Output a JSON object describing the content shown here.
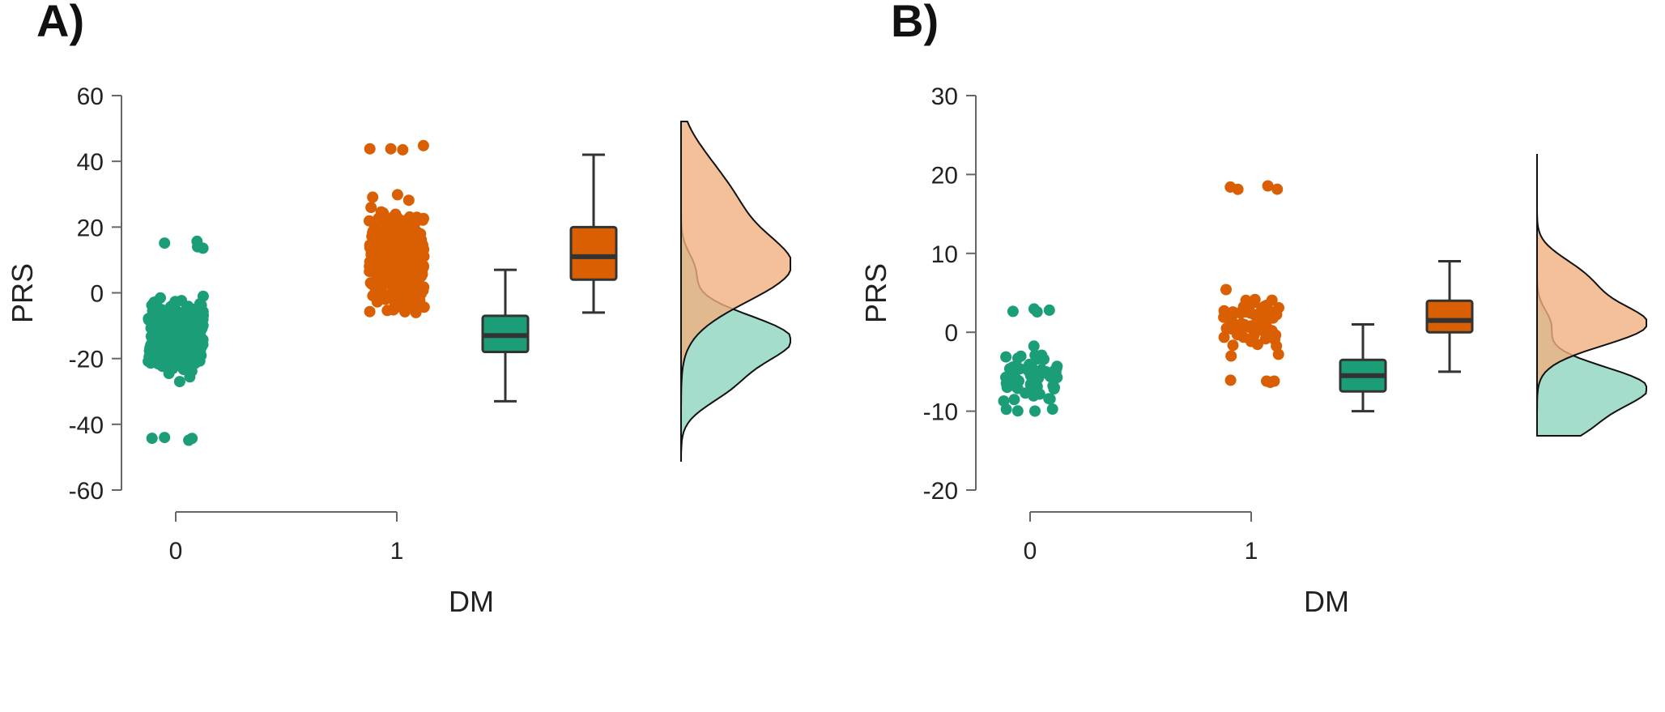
{
  "colors": {
    "group0": "#1b9e77",
    "group1": "#d95f02",
    "group0_density": "#8fd4bf",
    "group1_density": "#f0b07f",
    "box_edge": "#333333"
  },
  "chart_data": [
    {
      "type": "raincloud",
      "panel_label": "A)",
      "xlabel": "DM",
      "ylabel": "PRS",
      "ylim": [
        -60,
        60
      ],
      "yticks": [
        60,
        40,
        20,
        0,
        -20,
        -40,
        -60
      ],
      "ytick_labels": [
        "60",
        "40",
        "20",
        "0",
        "-20",
        "-40",
        "-60"
      ],
      "categories": [
        "0",
        "1"
      ],
      "series": [
        {
          "name": "0",
          "points_range": [
            -46,
            16
          ],
          "n_points": 420,
          "box": {
            "min": -33,
            "q1": -18,
            "median": -13,
            "q3": -7,
            "max": 7
          },
          "density_peak": -14
        },
        {
          "name": "1",
          "points_range": [
            -6,
            45
          ],
          "n_points": 420,
          "box": {
            "min": -6,
            "q1": 4,
            "median": 11,
            "q3": 20,
            "max": 42
          },
          "density_peak": 8
        }
      ]
    },
    {
      "type": "raincloud",
      "panel_label": "B)",
      "xlabel": "DM",
      "ylabel": "PRS",
      "ylim": [
        -20,
        30
      ],
      "yticks": [
        30,
        20,
        10,
        0,
        -10,
        -20
      ],
      "ytick_labels": [
        "30",
        "20",
        "10",
        "0",
        "-10",
        "-20"
      ],
      "categories": [
        "0",
        "1"
      ],
      "series": [
        {
          "name": "0",
          "points_range": [
            -10,
            3
          ],
          "n_points": 70,
          "box": {
            "min": -10,
            "q1": -7.5,
            "median": -5.5,
            "q3": -3.5,
            "max": 1
          },
          "density_peak": -7
        },
        {
          "name": "1",
          "points_range": [
            -7,
            19
          ],
          "n_points": 80,
          "box": {
            "min": -5,
            "q1": 0,
            "median": 1.5,
            "q3": 4,
            "max": 9
          },
          "density_peak": 1
        }
      ]
    }
  ]
}
